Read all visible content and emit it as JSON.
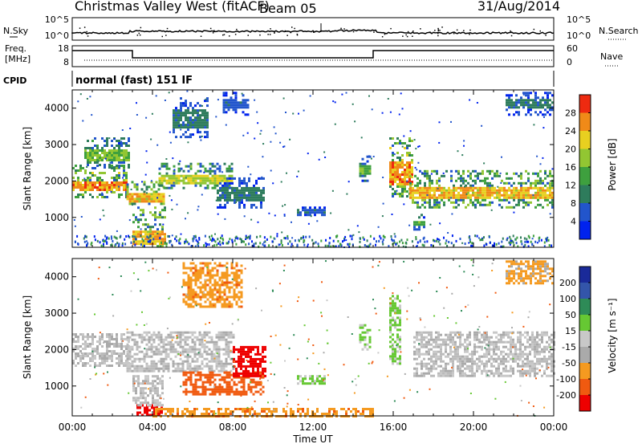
{
  "header": {
    "station": "Christmas Valley West (fitACF)",
    "beam": "Beam 05",
    "date": "31/Aug/2014"
  },
  "top_panels": {
    "nsky": {
      "label": "N.Sky",
      "ticks": [
        "10^5",
        "10^0"
      ]
    },
    "nsearch": {
      "label": "N.Search",
      "ticks": [
        "10^5",
        "10^0"
      ]
    },
    "freq": {
      "label_line1": "Freq.",
      "label_line2": "[MHz]",
      "ticks": [
        "18",
        "8"
      ]
    },
    "nave": {
      "label": "Nave",
      "ticks": [
        "60",
        "0"
      ]
    },
    "cpid": {
      "label": "CPID",
      "value": "normal (fast) 151 IF"
    }
  },
  "colors": {
    "power": [
      "#0022ee",
      "#2255cc",
      "#2e7c5c",
      "#3ea03e",
      "#92c632",
      "#e8d020",
      "#f08a18",
      "#ee2a10"
    ],
    "velocity": [
      "#ee0000",
      "#f05a10",
      "#f59a20",
      "#aaaaaa",
      "#c8c8c8",
      "#66c833",
      "#2e8b57",
      "#3355aa",
      "#1a2a99"
    ],
    "gs": "#bbbbbb"
  },
  "chart_data": [
    {
      "type": "heatmap",
      "panel": "power",
      "ylabel": "Slant Range [km]",
      "xlim": [
        0,
        24
      ],
      "ylim": [
        180,
        4500
      ],
      "yticks": [
        "1000",
        "2000",
        "3000",
        "4000"
      ],
      "colorbar": {
        "label": "Power [dB]",
        "ticks": [
          "4",
          "8",
          "12",
          "16",
          "20",
          "24",
          "28"
        ],
        "range": [
          0,
          30
        ]
      },
      "bands": [
        {
          "x": [
            0.0,
            2.7
          ],
          "range_km": [
            1550,
            2450
          ],
          "core_km": [
            1750,
            2050
          ],
          "peak_dB": 28
        },
        {
          "x": [
            0.6,
            2.8
          ],
          "range_km": [
            2400,
            3200
          ],
          "core_km": [
            2600,
            2900
          ],
          "peak_dB": 18
        },
        {
          "x": [
            2.7,
            4.6
          ],
          "range_km": [
            1350,
            2000
          ],
          "core_km": [
            1450,
            1700
          ],
          "peak_dB": 26
        },
        {
          "x": [
            4.3,
            8.0
          ],
          "range_km": [
            1800,
            2500
          ],
          "core_km": [
            1950,
            2200
          ],
          "peak_dB": 22
        },
        {
          "x": [
            7.2,
            9.6
          ],
          "range_km": [
            1300,
            2100
          ],
          "core_km": [
            1500,
            1900
          ],
          "peak_dB": 10
        },
        {
          "x": [
            3.0,
            4.6
          ],
          "range_km": [
            200,
            1300
          ],
          "core_km": [
            300,
            700
          ],
          "peak_dB": 26
        },
        {
          "x": [
            5.0,
            6.8
          ],
          "range_km": [
            3200,
            4300
          ],
          "core_km": [
            3500,
            4000
          ],
          "peak_dB": 10
        },
        {
          "x": [
            7.5,
            8.8
          ],
          "range_km": [
            3800,
            4450
          ],
          "core_km": [
            4000,
            4300
          ],
          "peak_dB": 8
        },
        {
          "x": [
            11.2,
            12.6
          ],
          "range_km": [
            1100,
            1300
          ],
          "core_km": [
            1150,
            1250
          ],
          "peak_dB": 8
        },
        {
          "x": [
            14.3,
            14.9
          ],
          "range_km": [
            2000,
            2700
          ],
          "core_km": [
            2200,
            2500
          ],
          "peak_dB": 16
        },
        {
          "x": [
            15.8,
            17.0
          ],
          "range_km": [
            1600,
            3200
          ],
          "core_km": [
            1900,
            2600
          ],
          "peak_dB": 28
        },
        {
          "x": [
            16.8,
            24.0
          ],
          "range_km": [
            1300,
            2300
          ],
          "core_km": [
            1550,
            1900
          ],
          "peak_dB": 26
        },
        {
          "x": [
            17.0,
            17.6
          ],
          "range_km": [
            700,
            1100
          ],
          "core_km": [
            800,
            950
          ],
          "peak_dB": 16
        },
        {
          "x": [
            21.6,
            24.0
          ],
          "range_km": [
            3800,
            4450
          ],
          "core_km": [
            4000,
            4300
          ],
          "peak_dB": 10
        }
      ]
    },
    {
      "type": "heatmap",
      "panel": "velocity",
      "ylabel": "Slant Range [km]",
      "xlabel": "Time UT",
      "xlim": [
        0,
        24
      ],
      "ylim": [
        180,
        4500
      ],
      "xticks": [
        "00:00",
        "04:00",
        "08:00",
        "12:00",
        "16:00",
        "20:00",
        "00:00"
      ],
      "yticks": [
        "1000",
        "2000",
        "3000",
        "4000"
      ],
      "colorbar": {
        "label": "Velocity [m s⁻¹]",
        "ticks": [
          "200",
          "100",
          "50",
          "15",
          "-15",
          "-50",
          "-100",
          "-200"
        ]
      },
      "bands": [
        {
          "x": [
            0.0,
            2.8
          ],
          "range_km": [
            1550,
            2450
          ],
          "velocity": 0
        },
        {
          "x": [
            2.7,
            8.0
          ],
          "range_km": [
            1400,
            2500
          ],
          "velocity": 0
        },
        {
          "x": [
            5.5,
            9.5
          ],
          "range_km": [
            800,
            1400
          ],
          "velocity": -120
        },
        {
          "x": [
            8.0,
            9.6
          ],
          "range_km": [
            1300,
            2100
          ],
          "velocity": -180
        },
        {
          "x": [
            3.2,
            4.5
          ],
          "range_km": [
            200,
            500
          ],
          "velocity": -220
        },
        {
          "x": [
            3.0,
            4.5
          ],
          "range_km": [
            500,
            1300
          ],
          "velocity": 0
        },
        {
          "x": [
            5.5,
            8.5
          ],
          "range_km": [
            3200,
            4400
          ],
          "velocity": -60
        },
        {
          "x": [
            11.2,
            12.6
          ],
          "range_km": [
            1100,
            1300
          ],
          "velocity": 40
        },
        {
          "x": [
            14.3,
            14.9
          ],
          "range_km": [
            2000,
            2700
          ],
          "velocity": 40
        },
        {
          "x": [
            15.8,
            16.4
          ],
          "range_km": [
            1600,
            3500
          ],
          "velocity": 40
        },
        {
          "x": [
            17.0,
            24.0
          ],
          "range_km": [
            1300,
            2500
          ],
          "velocity": 0
        },
        {
          "x": [
            4.0,
            15.0
          ],
          "range_km": [
            180,
            400
          ],
          "velocity": -60
        },
        {
          "x": [
            21.6,
            24.0
          ],
          "range_km": [
            3800,
            4450
          ],
          "velocity": -40
        }
      ]
    }
  ]
}
